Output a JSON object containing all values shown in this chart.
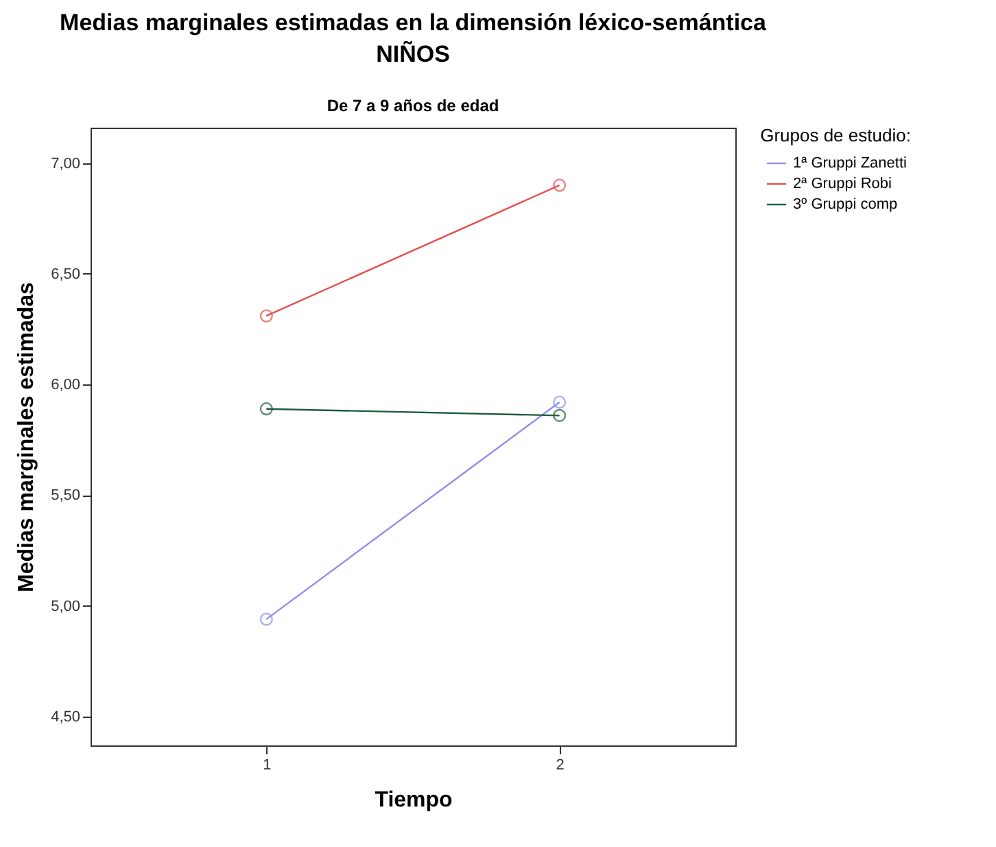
{
  "chart_data": {
    "type": "line",
    "title": "Medias marginales estimadas en la dimensión léxico-semántica",
    "subtitle": "NIÑOS",
    "annotations": [
      "De 7 a 9 años de edad"
    ],
    "xlabel": "Tiempo",
    "ylabel": "Medias marginales estimadas",
    "legend_title": "Grupos de estudio:",
    "x": [
      1,
      2
    ],
    "xlim": [
      0.4,
      2.6
    ],
    "xticks": [
      1,
      2
    ],
    "ylim": [
      4.37,
      7.16
    ],
    "yticks": [
      {
        "value": 4.5,
        "label": "4,50"
      },
      {
        "value": 5,
        "label": "5,00"
      },
      {
        "value": 5.5,
        "label": "5,50"
      },
      {
        "value": 6,
        "label": "6,00"
      },
      {
        "value": 6.5,
        "label": "6,50"
      },
      {
        "value": 7,
        "label": "7,00"
      }
    ],
    "series": [
      {
        "name": "1ª Gruppi Zanetti",
        "color": "#8f8fef",
        "values": [
          4.94,
          5.92
        ]
      },
      {
        "name": "2ª Gruppi Robi",
        "color": "#e85050",
        "values": [
          6.31,
          6.9
        ]
      },
      {
        "name": "3º Gruppi comp",
        "color": "#1e5c3c",
        "values": [
          5.89,
          5.86
        ]
      }
    ],
    "marker": "circle",
    "grid": false,
    "legend": "top right"
  }
}
